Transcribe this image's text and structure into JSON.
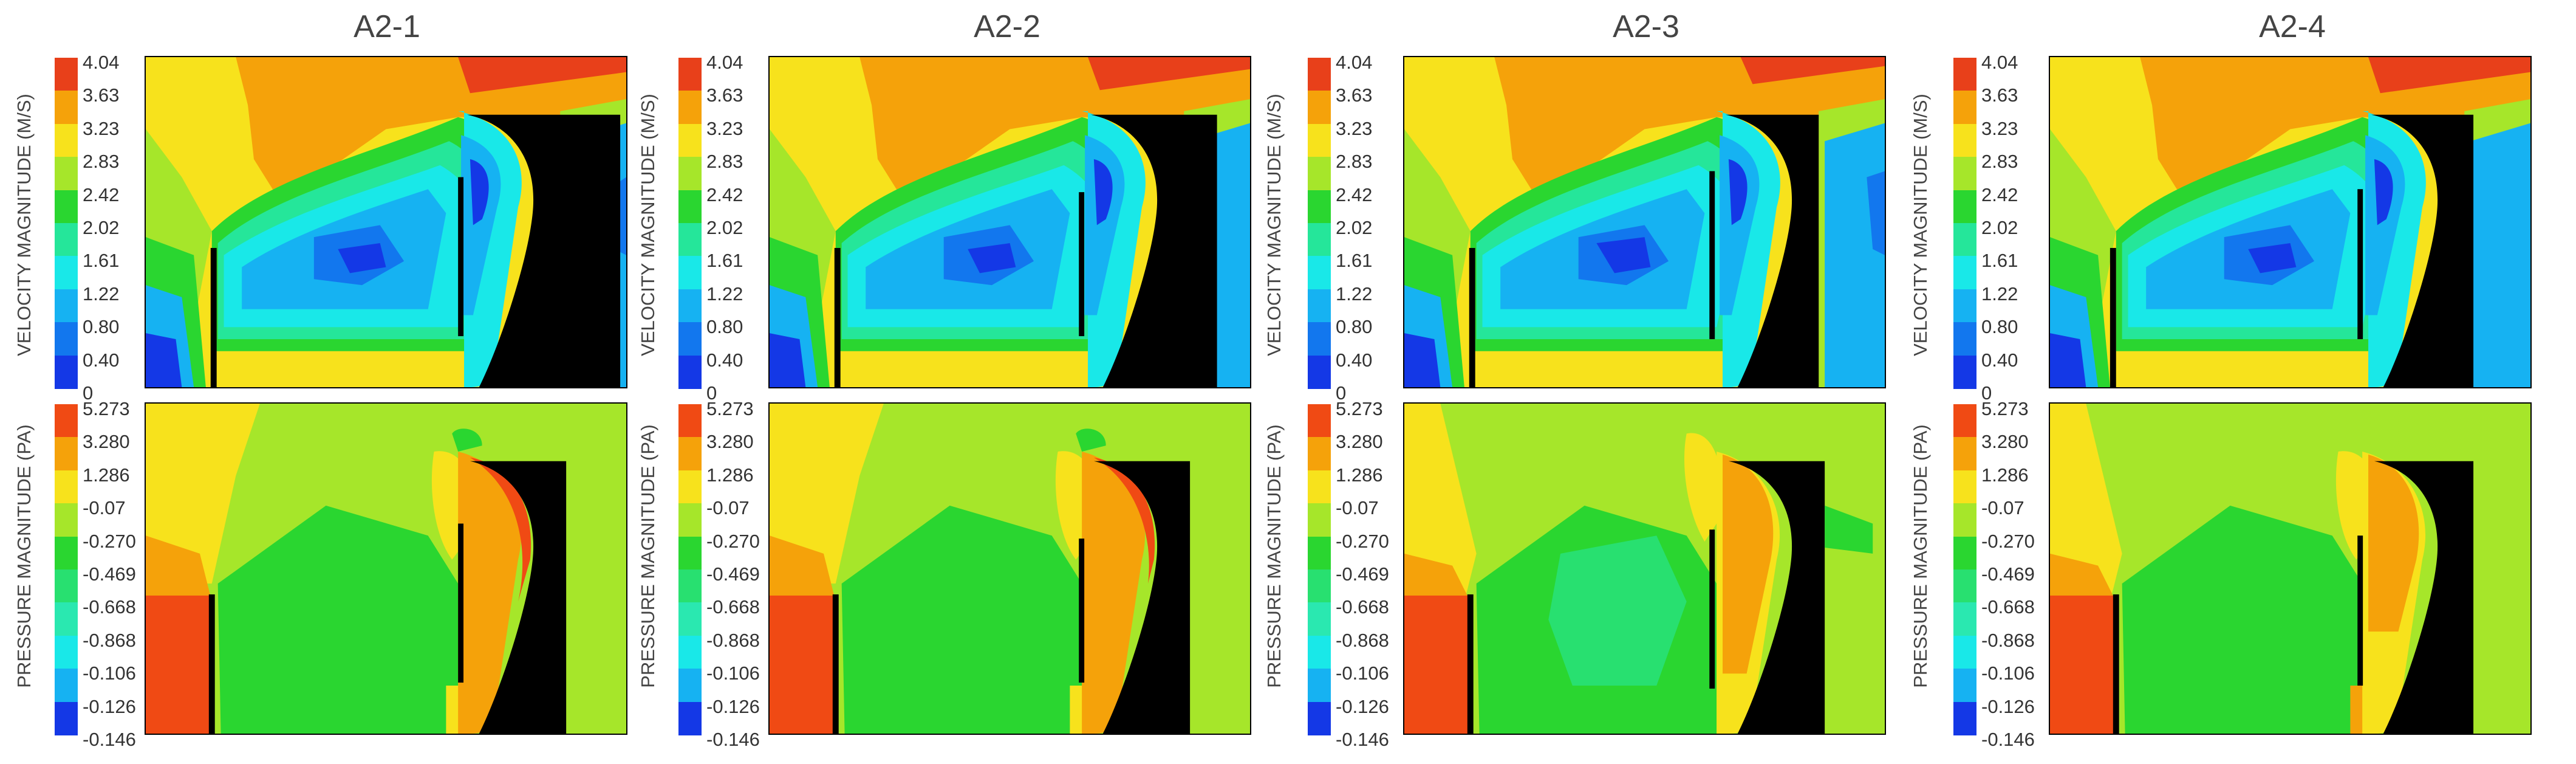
{
  "columns": [
    {
      "title": "A2-1"
    },
    {
      "title": "A2-2"
    },
    {
      "title": "A2-3"
    },
    {
      "title": "A2-4"
    }
  ],
  "velocity": {
    "axis_label": "VELOCITY MAGNITUDE (M/S)",
    "ticks": [
      "4.04",
      "3.63",
      "3.23",
      "2.83",
      "2.42",
      "2.02",
      "1.61",
      "1.22",
      "0.80",
      "0.40",
      "0"
    ],
    "colors": [
      "#e8401a",
      "#f5a20a",
      "#f7e21c",
      "#a6e62a",
      "#2ad630",
      "#25e69a",
      "#19e8e8",
      "#16b2f2",
      "#1277ee",
      "#1438e6"
    ]
  },
  "pressure": {
    "axis_label": "PRESSURE MAGNITUDE (PA)",
    "ticks": [
      "5.273",
      "3.280",
      "1.286",
      "-0.07",
      "-0.270",
      "-0.469",
      "-0.668",
      "-0.868",
      "-0.106",
      "-0.126",
      "-0.146"
    ],
    "colors": [
      "#f04a14",
      "#f5a20a",
      "#f7e21c",
      "#a6e62a",
      "#2ad630",
      "#28e070",
      "#2ae8b0",
      "#19e8e8",
      "#16b2f2",
      "#1438e6"
    ]
  }
}
